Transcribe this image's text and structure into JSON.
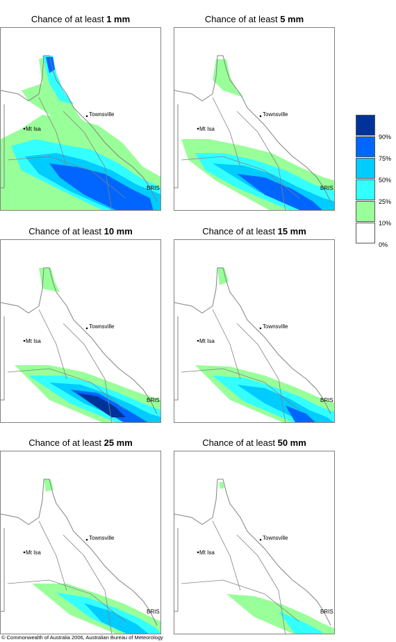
{
  "colors": {
    "c10_25": "#99FF99",
    "c25_50": "#33FFFF",
    "c50_75": "#00CCFF",
    "c75_90": "#0066FF",
    "c90_100": "#003399",
    "c0_10": "#FFFFFF",
    "boundary": "#808080"
  },
  "panels": [
    {
      "title_prefix": "Chance of at least ",
      "amount": "1 mm"
    },
    {
      "title_prefix": "Chance of at least ",
      "amount": "5 mm"
    },
    {
      "title_prefix": "Chance of at least ",
      "amount": "10 mm"
    },
    {
      "title_prefix": "Chance of at least ",
      "amount": "15 mm"
    },
    {
      "title_prefix": "Chance of at least ",
      "amount": "25 mm"
    },
    {
      "title_prefix": "Chance of at least ",
      "amount": "50 mm"
    }
  ],
  "places": {
    "townsville": "Townsville",
    "mt_isa": "Mt Isa",
    "brisbane": "BRIS"
  },
  "legend": {
    "labels": [
      "90%",
      "75%",
      "50%",
      "25%",
      "10%",
      "0%"
    ]
  },
  "copyright": "© Commonwealth of Australia 2006, Australian Bureau of Meteorology"
}
